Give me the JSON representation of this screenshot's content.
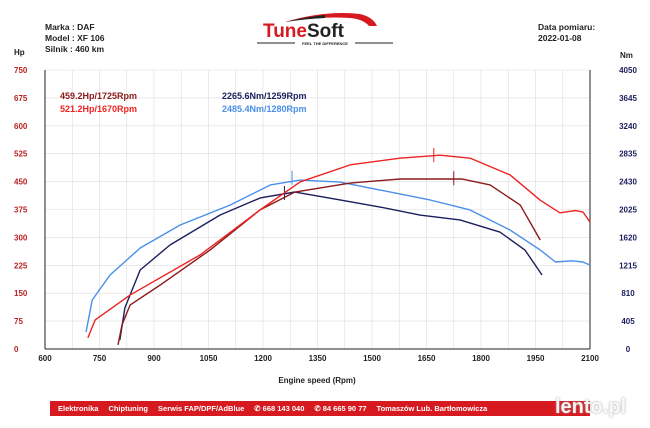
{
  "header": {
    "make": "Marka : DAF",
    "model": "Model : XF 106",
    "engine": "Silnik  : 460 km",
    "date_label": "Data pomiaru:",
    "date": "2022-01-08",
    "logo_text": "TuneSoft",
    "logo_tagline": "FEEL THE DIFFERENCE"
  },
  "footer": {
    "items": [
      "Elektronika",
      "Chiptuning",
      "Serwis FAP/DPF/AdBlue",
      "✆ 668 143 040",
      "✆ 84 665 90 77",
      "Tomaszów Lub. Bartłomowicza"
    ],
    "watermark": "lento.pl"
  },
  "colors": {
    "stock_hp": "#8b1a1a",
    "tuned_hp": "#ee2222",
    "stock_nm": "#1a1f5c",
    "tuned_nm": "#4a8fe8"
  },
  "chart_data": {
    "type": "line",
    "xlabel": "Engine speed (Rpm)",
    "ylabel_left": "Hp",
    "ylabel_right": "Nm",
    "xlim": [
      600,
      2100
    ],
    "ylim_left": [
      0,
      750
    ],
    "ylim_right": [
      0,
      4050
    ],
    "xticks": [
      600,
      750,
      900,
      1050,
      1200,
      1350,
      1500,
      1650,
      1800,
      1950,
      2100
    ],
    "yticks_left": [
      0,
      75,
      150,
      225,
      300,
      375,
      450,
      525,
      600,
      675,
      750
    ],
    "yticks_right": [
      0,
      405,
      810,
      1215,
      1620,
      2025,
      2430,
      2835,
      3240,
      3645,
      4050
    ],
    "grid": true,
    "annotations": [
      {
        "text": "459.2Hp/1725Rpm",
        "series": "stock_hp"
      },
      {
        "text": "521.2Hp/1670Rpm",
        "series": "tuned_hp"
      },
      {
        "text": "2265.6Nm/1259Rpm",
        "series": "stock_nm"
      },
      {
        "text": "2485.4Nm/1280Rpm",
        "series": "tuned_nm"
      }
    ],
    "series": [
      {
        "key": "tuned_hp",
        "axis": "left",
        "peak": [
          1670,
          521.2
        ],
        "points": [
          [
            718,
            30
          ],
          [
            738,
            78
          ],
          [
            834,
            145
          ],
          [
            1027,
            253
          ],
          [
            1192,
            374
          ],
          [
            1302,
            449
          ],
          [
            1440,
            495
          ],
          [
            1577,
            513
          ],
          [
            1687,
            521
          ],
          [
            1770,
            513
          ],
          [
            1880,
            468
          ],
          [
            1963,
            400
          ],
          [
            2017,
            366
          ],
          [
            2060,
            372
          ],
          [
            2081,
            368
          ],
          [
            2100,
            341
          ]
        ]
      },
      {
        "key": "stock_hp",
        "axis": "left",
        "peak": [
          1725,
          459.2
        ],
        "points": [
          [
            801,
            11
          ],
          [
            812,
            65
          ],
          [
            834,
            118
          ],
          [
            917,
            172
          ],
          [
            1054,
            266
          ],
          [
            1192,
            374
          ],
          [
            1288,
            422
          ],
          [
            1440,
            446
          ],
          [
            1577,
            457
          ],
          [
            1747,
            457
          ],
          [
            1825,
            441
          ],
          [
            1908,
            387
          ],
          [
            1963,
            293
          ]
        ]
      },
      {
        "key": "tuned_nm",
        "axis": "right",
        "peak": [
          1280,
          2485.4
        ],
        "points": [
          [
            713,
            246
          ],
          [
            730,
            711
          ],
          [
            779,
            1074
          ],
          [
            862,
            1466
          ],
          [
            972,
            1800
          ],
          [
            1110,
            2090
          ],
          [
            1220,
            2381
          ],
          [
            1302,
            2453
          ],
          [
            1412,
            2424
          ],
          [
            1522,
            2308
          ],
          [
            1660,
            2163
          ],
          [
            1770,
            2018
          ],
          [
            1880,
            1727
          ],
          [
            1963,
            1437
          ],
          [
            2005,
            1263
          ],
          [
            2050,
            1280
          ],
          [
            2080,
            1263
          ],
          [
            2100,
            1219
          ]
        ]
      },
      {
        "key": "stock_nm",
        "axis": "right",
        "peak": [
          1259,
          2265.6
        ],
        "points": [
          [
            806,
            131
          ],
          [
            820,
            600
          ],
          [
            862,
            1147
          ],
          [
            944,
            1510
          ],
          [
            1082,
            1945
          ],
          [
            1192,
            2192
          ],
          [
            1288,
            2279
          ],
          [
            1412,
            2163
          ],
          [
            1522,
            2061
          ],
          [
            1632,
            1945
          ],
          [
            1742,
            1873
          ],
          [
            1852,
            1698
          ],
          [
            1921,
            1437
          ],
          [
            1968,
            1074
          ]
        ]
      }
    ]
  }
}
